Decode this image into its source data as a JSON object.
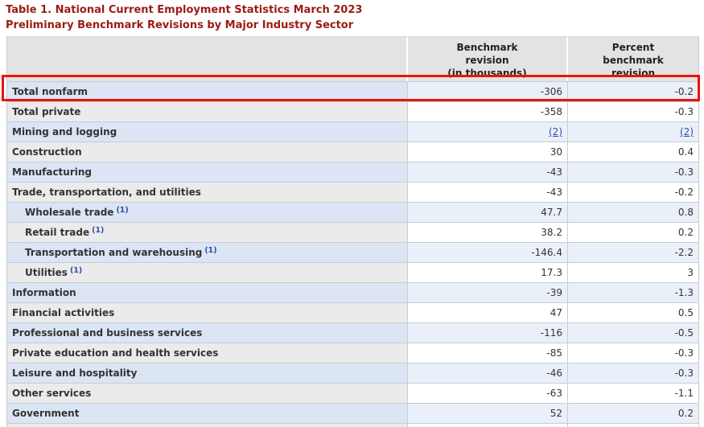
{
  "title": {
    "line1": "Table 1. National Current Employment Statistics March 2023",
    "line2": "Preliminary Benchmark Revisions by Major Industry Sector"
  },
  "table": {
    "header": {
      "col2_lines": [
        "Benchmark",
        "revision",
        "(in thousands)"
      ],
      "col3_lines": [
        "Percent",
        "benchmark",
        "revision"
      ]
    },
    "rows": [
      {
        "label": "Total nonfarm",
        "sup": "",
        "benchmark": "-306",
        "percent": "-0.2",
        "indent": false,
        "link": false,
        "highlighted": true
      },
      {
        "label": "Total private",
        "sup": "",
        "benchmark": "-358",
        "percent": "-0.3",
        "indent": false,
        "link": false,
        "highlighted": false
      },
      {
        "label": "Mining and logging",
        "sup": "",
        "benchmark": "(2)",
        "percent": "(2)",
        "indent": false,
        "link": true,
        "highlighted": false
      },
      {
        "label": "Construction",
        "sup": "",
        "benchmark": "30",
        "percent": "0.4",
        "indent": false,
        "link": false,
        "highlighted": false
      },
      {
        "label": "Manufacturing",
        "sup": "",
        "benchmark": "-43",
        "percent": "-0.3",
        "indent": false,
        "link": false,
        "highlighted": false
      },
      {
        "label": "Trade, transportation, and utilities",
        "sup": "",
        "benchmark": "-43",
        "percent": "-0.2",
        "indent": false,
        "link": false,
        "highlighted": false
      },
      {
        "label": "Wholesale trade",
        "sup": "(1)",
        "benchmark": "47.7",
        "percent": "0.8",
        "indent": true,
        "link": false,
        "highlighted": false
      },
      {
        "label": "Retail trade",
        "sup": "(1)",
        "benchmark": "38.2",
        "percent": "0.2",
        "indent": true,
        "link": false,
        "highlighted": false
      },
      {
        "label": "Transportation and warehousing",
        "sup": "(1)",
        "benchmark": "-146.4",
        "percent": "-2.2",
        "indent": true,
        "link": false,
        "highlighted": false
      },
      {
        "label": "Utilities",
        "sup": "(1)",
        "benchmark": "17.3",
        "percent": "3",
        "indent": true,
        "link": false,
        "highlighted": false
      },
      {
        "label": "Information",
        "sup": "",
        "benchmark": "-39",
        "percent": "-1.3",
        "indent": false,
        "link": false,
        "highlighted": false
      },
      {
        "label": "Financial activities",
        "sup": "",
        "benchmark": "47",
        "percent": "0.5",
        "indent": false,
        "link": false,
        "highlighted": false
      },
      {
        "label": "Professional and business services",
        "sup": "",
        "benchmark": "-116",
        "percent": "-0.5",
        "indent": false,
        "link": false,
        "highlighted": false
      },
      {
        "label": "Private education and health services",
        "sup": "",
        "benchmark": "-85",
        "percent": "-0.3",
        "indent": false,
        "link": false,
        "highlighted": false
      },
      {
        "label": "Leisure and hospitality",
        "sup": "",
        "benchmark": "-46",
        "percent": "-0.3",
        "indent": false,
        "link": false,
        "highlighted": false
      },
      {
        "label": "Other services",
        "sup": "",
        "benchmark": "-63",
        "percent": "-1.1",
        "indent": false,
        "link": false,
        "highlighted": false
      },
      {
        "label": "Government",
        "sup": "",
        "benchmark": "52",
        "percent": "0.2",
        "indent": false,
        "link": false,
        "highlighted": false
      }
    ]
  },
  "colors": {
    "title_red": "#9c1b13",
    "highlight_red": "#ed130a",
    "link_blue": "#2e4fa5",
    "row_blue_label": "#dbe5f4",
    "row_blue_value": "#eaf0fa",
    "row_gray_label": "#ebebeb",
    "header_gray": "#e3e3e3"
  }
}
